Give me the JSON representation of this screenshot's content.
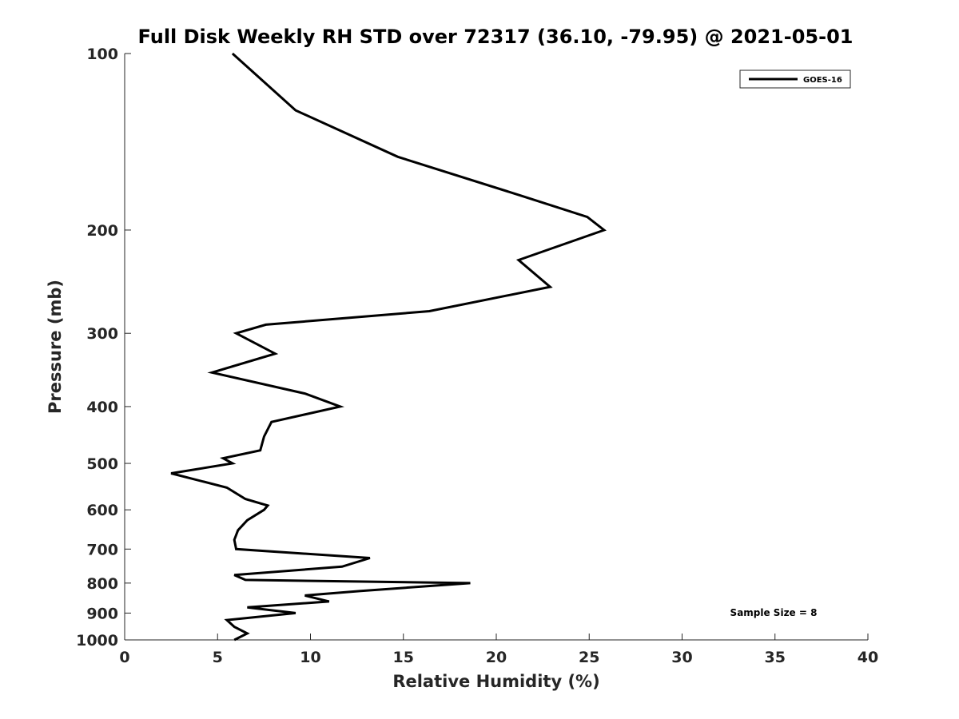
{
  "chart_data": {
    "type": "line",
    "title": "Full Disk Weekly RH STD over 72317 (36.10, -79.95) @ 2021-05-01",
    "xlabel": "Relative Humidity (%)",
    "ylabel": "Pressure (mb)",
    "xlim": [
      0,
      40
    ],
    "ylim": [
      100,
      1000
    ],
    "y_scale": "log",
    "y_reversed": true,
    "xticks": [
      0,
      5,
      10,
      15,
      20,
      25,
      30,
      35,
      40
    ],
    "yticks": [
      100,
      200,
      300,
      400,
      500,
      600,
      700,
      800,
      900,
      1000
    ],
    "grid": false,
    "legend_position": "top-right",
    "annotation": "Sample Size = 8",
    "series": [
      {
        "name": "GOES-16",
        "color": "#000000",
        "points": [
          [
            5.8,
            100
          ],
          [
            9.2,
            125
          ],
          [
            14.7,
            150
          ],
          [
            21.4,
            175
          ],
          [
            24.9,
            190
          ],
          [
            25.8,
            200
          ],
          [
            21.2,
            225
          ],
          [
            22.9,
            250
          ],
          [
            16.4,
            275
          ],
          [
            7.6,
            290
          ],
          [
            6.0,
            300
          ],
          [
            8.1,
            325
          ],
          [
            4.7,
            350
          ],
          [
            9.7,
            380
          ],
          [
            11.6,
            400
          ],
          [
            7.9,
            425
          ],
          [
            7.5,
            450
          ],
          [
            7.3,
            475
          ],
          [
            5.3,
            490
          ],
          [
            5.8,
            500
          ],
          [
            2.5,
            520
          ],
          [
            5.5,
            550
          ],
          [
            6.5,
            575
          ],
          [
            7.7,
            590
          ],
          [
            7.5,
            600
          ],
          [
            6.6,
            625
          ],
          [
            6.1,
            650
          ],
          [
            5.9,
            675
          ],
          [
            6.0,
            700
          ],
          [
            13.2,
            725
          ],
          [
            11.7,
            750
          ],
          [
            5.9,
            775
          ],
          [
            6.5,
            790
          ],
          [
            18.6,
            800
          ],
          [
            12.7,
            825
          ],
          [
            9.7,
            840
          ],
          [
            11.0,
            860
          ],
          [
            6.6,
            880
          ],
          [
            9.2,
            900
          ],
          [
            5.5,
            925
          ],
          [
            5.9,
            950
          ],
          [
            6.6,
            975
          ],
          [
            5.9,
            1000
          ]
        ]
      }
    ]
  }
}
